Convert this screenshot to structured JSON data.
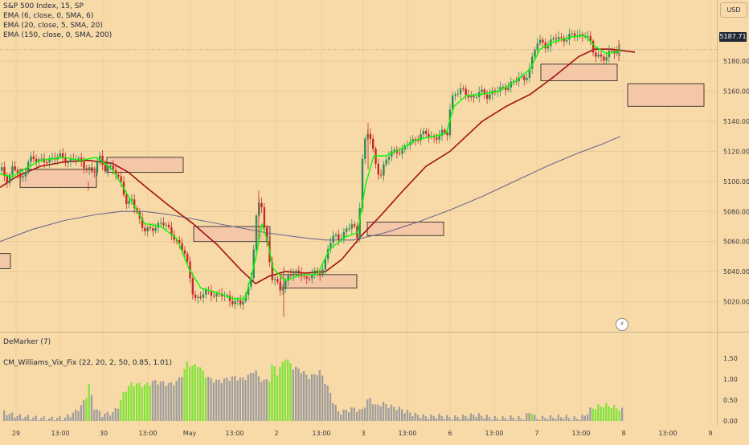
{
  "header": {
    "symbol_line": "S&P 500 Index, 15, SP",
    "indicators": [
      "EMA (6, close, 0, SMA, 6)",
      "EMA (20, close, 5, SMA, 20)",
      "EMA (150, close, 0, SMA, 200)"
    ]
  },
  "toolbar": {
    "currency_label": "USD"
  },
  "last_price": "5187.71",
  "lower_pane": {
    "demarker_label": "DeMarker (7)",
    "cm_label": "CM_Williams_Vix_Fix (22, 20, 2, 50, 0.85, 1.01)"
  },
  "icons": {
    "flash": "lightning-icon"
  },
  "colors": {
    "background": "#f8d9a8",
    "ema_fast": "#00ff00",
    "ema_mid": "#a11010",
    "ema_slow": "#6b6b8e",
    "bar_green": "#80e53a",
    "bar_gray": "#9e9e9e",
    "zone_fill": "#f4c7a6"
  },
  "chart_data": [
    {
      "type": "candlestick",
      "title": "S&P 500 Index, 15, SP",
      "x_tick_labels": [
        "29",
        "13:00",
        "30",
        "13:00",
        "May",
        "13:00",
        "2",
        "13:00",
        "3",
        "13:00",
        "6",
        "13:00",
        "7",
        "13:00",
        "8",
        "13:00",
        "9"
      ],
      "y_tick_labels": [
        "5020.00",
        "5040.00",
        "5060.00",
        "5080.00",
        "5100.00",
        "5120.00",
        "5140.00",
        "5160.00",
        "5180.00"
      ],
      "ylim": [
        5000,
        5210
      ],
      "price_path": [
        [
          0,
          5108
        ],
        [
          8,
          5101
        ],
        [
          15,
          5110
        ],
        [
          22,
          5104
        ],
        [
          25,
          5099
        ],
        [
          35,
          5116
        ],
        [
          45,
          5113
        ],
        [
          55,
          5115
        ],
        [
          65,
          5114
        ],
        [
          75,
          5118
        ],
        [
          85,
          5112
        ],
        [
          95,
          5116
        ],
        [
          105,
          5110
        ],
        [
          115,
          5104
        ],
        [
          122,
          5118
        ],
        [
          130,
          5108
        ],
        [
          140,
          5108
        ],
        [
          150,
          5100
        ],
        [
          157,
          5082
        ],
        [
          163,
          5088
        ],
        [
          170,
          5079
        ],
        [
          178,
          5067
        ],
        [
          185,
          5067
        ],
        [
          193,
          5071
        ],
        [
          200,
          5073
        ],
        [
          208,
          5068
        ],
        [
          215,
          5064
        ],
        [
          222,
          5058
        ],
        [
          230,
          5050
        ],
        [
          236,
          5034
        ],
        [
          240,
          5024
        ],
        [
          247,
          5021
        ],
        [
          253,
          5026
        ],
        [
          260,
          5027
        ],
        [
          268,
          5024
        ],
        [
          275,
          5024
        ],
        [
          282,
          5023
        ],
        [
          290,
          5020
        ],
        [
          298,
          5018
        ],
        [
          305,
          5024
        ],
        [
          312,
          5040
        ],
        [
          318,
          5076
        ],
        [
          323,
          5090
        ],
        [
          328,
          5068
        ],
        [
          332,
          5057
        ],
        [
          338,
          5034
        ],
        [
          343,
          5032
        ],
        [
          348,
          5028
        ],
        [
          352,
          5030
        ],
        [
          358,
          5040
        ],
        [
          365,
          5037
        ],
        [
          372,
          5040
        ],
        [
          380,
          5035
        ],
        [
          387,
          5038
        ],
        [
          395,
          5038
        ],
        [
          402,
          5044
        ],
        [
          408,
          5058
        ],
        [
          415,
          5063
        ],
        [
          422,
          5063
        ],
        [
          430,
          5068
        ],
        [
          438,
          5071
        ],
        [
          444,
          5062
        ],
        [
          450,
          5117
        ],
        [
          455,
          5133
        ],
        [
          460,
          5128
        ],
        [
          466,
          5112
        ],
        [
          472,
          5104
        ],
        [
          478,
          5112
        ],
        [
          485,
          5119
        ],
        [
          492,
          5121
        ],
        [
          500,
          5120
        ],
        [
          508,
          5126
        ],
        [
          515,
          5128
        ],
        [
          522,
          5131
        ],
        [
          530,
          5131
        ],
        [
          540,
          5129
        ],
        [
          548,
          5132
        ],
        [
          555,
          5130
        ],
        [
          560,
          5155
        ],
        [
          565,
          5159
        ],
        [
          572,
          5160
        ],
        [
          580,
          5158
        ],
        [
          588,
          5156
        ],
        [
          596,
          5159
        ],
        [
          604,
          5157
        ],
        [
          612,
          5160
        ],
        [
          620,
          5160
        ],
        [
          628,
          5163
        ],
        [
          636,
          5166
        ],
        [
          645,
          5168
        ],
        [
          652,
          5169
        ],
        [
          658,
          5175
        ],
        [
          663,
          5186
        ],
        [
          668,
          5192
        ],
        [
          674,
          5193
        ],
        [
          680,
          5190
        ],
        [
          688,
          5195
        ],
        [
          696,
          5195
        ],
        [
          705,
          5196
        ],
        [
          712,
          5197
        ],
        [
          720,
          5197
        ],
        [
          728,
          5199
        ],
        [
          733,
          5192
        ],
        [
          738,
          5184
        ],
        [
          745,
          5184
        ],
        [
          752,
          5182
        ],
        [
          760,
          5186
        ],
        [
          766,
          5187
        ],
        [
          772,
          5188
        ]
      ],
      "series": [
        {
          "name": "EMA (6, close, 0, SMA, 6)",
          "color": "#00ff00",
          "values": [
            [
              0,
              5105
            ],
            [
              15,
              5103
            ],
            [
              30,
              5108
            ],
            [
              50,
              5114
            ],
            [
              80,
              5116
            ],
            [
              100,
              5114
            ],
            [
              120,
              5116
            ],
            [
              140,
              5108
            ],
            [
              160,
              5090
            ],
            [
              180,
              5072
            ],
            [
              200,
              5070
            ],
            [
              220,
              5062
            ],
            [
              235,
              5042
            ],
            [
              250,
              5029
            ],
            [
              270,
              5026
            ],
            [
              290,
              5022
            ],
            [
              305,
              5022
            ],
            [
              318,
              5048
            ],
            [
              326,
              5072
            ],
            [
              333,
              5060
            ],
            [
              340,
              5042
            ],
            [
              355,
              5034
            ],
            [
              375,
              5038
            ],
            [
              395,
              5038
            ],
            [
              410,
              5055
            ],
            [
              430,
              5063
            ],
            [
              445,
              5066
            ],
            [
              455,
              5098
            ],
            [
              465,
              5117
            ],
            [
              480,
              5117
            ],
            [
              500,
              5122
            ],
            [
              520,
              5128
            ],
            [
              540,
              5130
            ],
            [
              555,
              5132
            ],
            [
              565,
              5150
            ],
            [
              580,
              5157
            ],
            [
              600,
              5158
            ],
            [
              620,
              5160
            ],
            [
              640,
              5166
            ],
            [
              660,
              5175
            ],
            [
              672,
              5188
            ],
            [
              690,
              5193
            ],
            [
              710,
              5196
            ],
            [
              728,
              5197
            ],
            [
              740,
              5190
            ],
            [
              755,
              5185
            ],
            [
              772,
              5187
            ]
          ]
        },
        {
          "name": "EMA (20, close, 5, SMA, 20)",
          "color": "#a11010",
          "values": [
            [
              0,
              5096
            ],
            [
              20,
              5103
            ],
            [
              50,
              5110
            ],
            [
              80,
              5113
            ],
            [
              110,
              5114
            ],
            [
              140,
              5112
            ],
            [
              160,
              5106
            ],
            [
              180,
              5097
            ],
            [
              210,
              5084
            ],
            [
              240,
              5072
            ],
            [
              270,
              5058
            ],
            [
              300,
              5041
            ],
            [
              318,
              5032
            ],
            [
              335,
              5037
            ],
            [
              355,
              5040
            ],
            [
              380,
              5039
            ],
            [
              405,
              5040
            ],
            [
              425,
              5048
            ],
            [
              450,
              5064
            ],
            [
              475,
              5078
            ],
            [
              500,
              5093
            ],
            [
              530,
              5110
            ],
            [
              560,
              5120
            ],
            [
              580,
              5130
            ],
            [
              600,
              5140
            ],
            [
              630,
              5150
            ],
            [
              660,
              5158
            ],
            [
              690,
              5170
            ],
            [
              720,
              5183
            ],
            [
              740,
              5188
            ],
            [
              760,
              5188
            ],
            [
              790,
              5186
            ]
          ]
        },
        {
          "name": "EMA (150, close, 0, SMA, 200)",
          "color": "#6b6b8e",
          "values": [
            [
              0,
              5060
            ],
            [
              40,
              5068
            ],
            [
              80,
              5074
            ],
            [
              120,
              5078
            ],
            [
              150,
              5080
            ],
            [
              180,
              5080
            ],
            [
              210,
              5078
            ],
            [
              250,
              5074
            ],
            [
              290,
              5070
            ],
            [
              330,
              5066
            ],
            [
              370,
              5063
            ],
            [
              405,
              5061
            ],
            [
              440,
              5061
            ],
            [
              480,
              5066
            ],
            [
              520,
              5073
            ],
            [
              560,
              5081
            ],
            [
              600,
              5090
            ],
            [
              640,
              5100
            ],
            [
              680,
              5110
            ],
            [
              720,
              5119
            ],
            [
              750,
              5125
            ],
            [
              772,
              5130
            ]
          ]
        }
      ],
      "annotations": [
        {
          "kind": "zone",
          "x0": -5,
          "x1": 13,
          "y0": 5042,
          "y1": 5052
        },
        {
          "kind": "zone",
          "x0": 25,
          "x1": 120,
          "y0": 5096,
          "y1": 5108
        },
        {
          "kind": "zone",
          "x0": 133,
          "x1": 228,
          "y0": 5106,
          "y1": 5116
        },
        {
          "kind": "zone",
          "x0": 241,
          "x1": 336,
          "y0": 5060,
          "y1": 5070
        },
        {
          "kind": "zone",
          "x0": 349,
          "x1": 444,
          "y0": 5029,
          "y1": 5038
        },
        {
          "kind": "zone",
          "x0": 457,
          "x1": 552,
          "y0": 5064,
          "y1": 5073
        },
        {
          "kind": "zone",
          "x0": 673,
          "x1": 768,
          "y0": 5167,
          "y1": 5178
        },
        {
          "kind": "zone",
          "x0": 781,
          "x1": 876,
          "y0": 5150,
          "y1": 5165
        }
      ]
    },
    {
      "type": "bar",
      "title": "CM_Williams_Vix_Fix (22, 20, 2, 50, 0.85, 1.01)",
      "y_tick_labels": [
        "0.00",
        "0.50",
        "1.00",
        "1.50"
      ],
      "ylim": [
        0,
        1.6
      ],
      "value_path": [
        [
          0,
          0.22
        ],
        [
          20,
          0.12
        ],
        [
          40,
          0.08
        ],
        [
          60,
          0.05
        ],
        [
          80,
          0.07
        ],
        [
          95,
          0.25
        ],
        [
          105,
          0.5
        ],
        [
          110,
          0.9
        ],
        [
          115,
          0.35
        ],
        [
          125,
          0.15
        ],
        [
          140,
          0.2
        ],
        [
          148,
          0.4
        ],
        [
          150,
          0.55
        ],
        [
          155,
          0.75
        ],
        [
          162,
          0.88
        ],
        [
          170,
          0.88
        ],
        [
          180,
          0.85
        ],
        [
          190,
          0.95
        ],
        [
          200,
          0.92
        ],
        [
          210,
          0.88
        ],
        [
          220,
          0.95
        ],
        [
          228,
          1.2
        ],
        [
          232,
          1.4
        ],
        [
          238,
          1.3
        ],
        [
          245,
          1.35
        ],
        [
          252,
          1.15
        ],
        [
          260,
          1.0
        ],
        [
          270,
          0.95
        ],
        [
          280,
          1.0
        ],
        [
          290,
          1.05
        ],
        [
          300,
          1.0
        ],
        [
          310,
          1.1
        ],
        [
          316,
          1.25
        ],
        [
          320,
          1.05
        ],
        [
          328,
          0.95
        ],
        [
          334,
          1.0
        ],
        [
          338,
          1.38
        ],
        [
          344,
          1.15
        ],
        [
          350,
          1.35
        ],
        [
          353,
          1.55
        ],
        [
          358,
          1.42
        ],
        [
          363,
          1.3
        ],
        [
          368,
          1.25
        ],
        [
          375,
          1.2
        ],
        [
          382,
          1.05
        ],
        [
          390,
          1.1
        ],
        [
          396,
          1.2
        ],
        [
          402,
          1.0
        ],
        [
          408,
          0.75
        ],
        [
          414,
          0.45
        ],
        [
          420,
          0.2
        ],
        [
          430,
          0.25
        ],
        [
          440,
          0.3
        ],
        [
          448,
          0.22
        ],
        [
          455,
          0.45
        ],
        [
          460,
          0.55
        ],
        [
          466,
          0.35
        ],
        [
          475,
          0.42
        ],
        [
          485,
          0.35
        ],
        [
          495,
          0.3
        ],
        [
          505,
          0.22
        ],
        [
          515,
          0.15
        ],
        [
          530,
          0.1
        ],
        [
          545,
          0.12
        ],
        [
          560,
          0.08
        ],
        [
          575,
          0.1
        ],
        [
          590,
          0.15
        ],
        [
          605,
          0.1
        ],
        [
          620,
          0.05
        ],
        [
          635,
          0.08
        ],
        [
          650,
          0.05
        ],
        [
          660,
          0.25
        ],
        [
          665,
          0.05
        ],
        [
          680,
          0.08
        ],
        [
          700,
          0.1
        ],
        [
          715,
          0.05
        ],
        [
          725,
          0.1
        ],
        [
          735,
          0.3
        ],
        [
          745,
          0.35
        ],
        [
          752,
          0.38
        ],
        [
          760,
          0.35
        ],
        [
          768,
          0.3
        ],
        [
          774,
          0.25
        ]
      ],
      "green_x_ranges": [
        [
          104,
          112
        ],
        [
          148,
          186
        ],
        [
          226,
          258
        ],
        [
          334,
          363
        ],
        [
          658,
          662
        ],
        [
          734,
          770
        ]
      ]
    }
  ]
}
